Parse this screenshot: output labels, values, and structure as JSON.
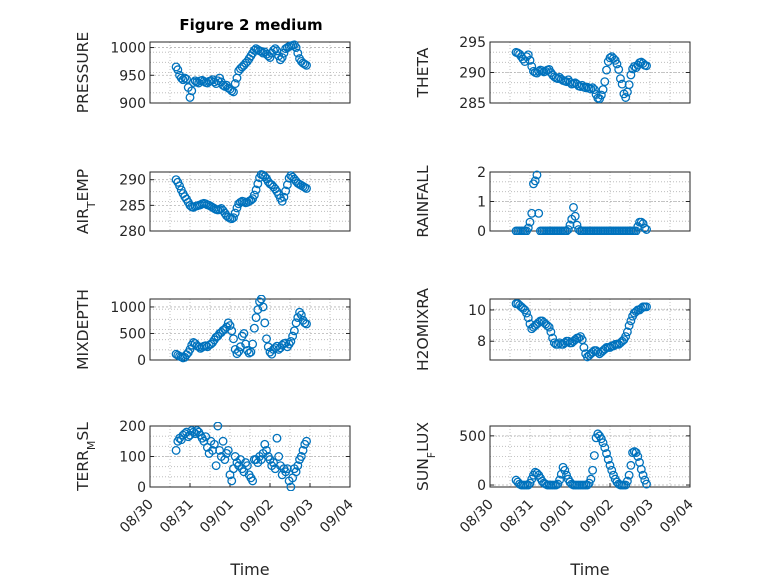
{
  "title": "Figure 2 medium",
  "colors": {
    "series": "#0072BD",
    "axis": "#262626",
    "grid": "#b3b3b3"
  },
  "chart_data": [
    {
      "type": "scatter",
      "title": "Figure 2 medium",
      "ylabel": "PRESSURE",
      "ylim": [
        900,
        1010
      ],
      "yticks": [
        "900",
        "950",
        "1000"
      ],
      "x": [
        0.0,
        0.04,
        0.08,
        0.12,
        0.16,
        0.2,
        0.24,
        0.28,
        0.32,
        0.36,
        0.4,
        0.44,
        0.48,
        0.52,
        0.56,
        0.6,
        0.64,
        0.68,
        0.72,
        0.76,
        0.8,
        0.84,
        0.88,
        0.92,
        0.96,
        1.0,
        1.04,
        1.08,
        1.12,
        1.16,
        1.2,
        1.24,
        1.28,
        1.32,
        1.36,
        1.4,
        1.44,
        1.48,
        1.52,
        1.56,
        1.6,
        1.64,
        1.68,
        1.72,
        1.76,
        1.8,
        1.84,
        1.88,
        1.92,
        1.96,
        2.0,
        2.04,
        2.08,
        2.12,
        2.16,
        2.2,
        2.24,
        2.28,
        2.32,
        2.36,
        2.4,
        2.44,
        2.48,
        2.52,
        2.56,
        2.6,
        2.64,
        2.68,
        2.72,
        2.76,
        2.8,
        2.84,
        2.88,
        2.92,
        2.96,
        3.0
      ],
      "y": [
        965,
        960,
        950,
        945,
        942,
        945,
        943,
        928,
        910,
        922,
        937,
        940,
        938,
        936,
        940,
        941,
        939,
        937,
        936,
        939,
        940,
        942,
        938,
        935,
        940,
        945,
        938,
        932,
        930,
        932,
        927,
        925,
        922,
        920,
        935,
        945,
        958,
        962,
        965,
        968,
        972,
        975,
        980,
        985,
        990,
        995,
        998,
        996,
        994,
        993,
        990,
        992,
        988,
        985,
        982,
        990,
        995,
        998,
        994,
        985,
        978,
        982,
        990,
        998,
        1000,
        1002,
        1003,
        1004,
        1005,
        1000,
        990,
        980,
        975,
        972,
        970,
        968
      ],
      "xlim": [
        -0.6,
        4.0
      ],
      "xticks": [],
      "xlabel": ""
    },
    {
      "type": "scatter",
      "ylabel": "THETA",
      "ylim": [
        285,
        295
      ],
      "yticks": [
        "285",
        "290",
        "295"
      ],
      "x": [
        0.0,
        0.04,
        0.08,
        0.12,
        0.16,
        0.2,
        0.24,
        0.28,
        0.32,
        0.36,
        0.4,
        0.44,
        0.48,
        0.52,
        0.56,
        0.6,
        0.64,
        0.68,
        0.72,
        0.76,
        0.8,
        0.84,
        0.88,
        0.92,
        0.96,
        1.0,
        1.04,
        1.08,
        1.12,
        1.16,
        1.2,
        1.24,
        1.28,
        1.32,
        1.36,
        1.4,
        1.44,
        1.48,
        1.52,
        1.56,
        1.6,
        1.64,
        1.68,
        1.72,
        1.76,
        1.8,
        1.84,
        1.88,
        1.92,
        1.96,
        2.0,
        2.04,
        2.08,
        2.12,
        2.16,
        2.2,
        2.24,
        2.28,
        2.32,
        2.36,
        2.4,
        2.44,
        2.48,
        2.52,
        2.56,
        2.6,
        2.64,
        2.68,
        2.72,
        2.76,
        2.8,
        2.84,
        2.88,
        2.92,
        2.96,
        3.0
      ],
      "y": [
        293.3,
        293.2,
        293,
        292.6,
        292.2,
        291.8,
        292.6,
        292.9,
        292,
        291,
        290.2,
        290,
        289.9,
        290.2,
        290.4,
        290.3,
        290.1,
        290.2,
        290.4,
        290.5,
        290,
        289.6,
        289.3,
        289.1,
        289,
        289.2,
        288.9,
        288.7,
        288.6,
        288.5,
        288.8,
        288.4,
        288.1,
        288.2,
        288.3,
        288.1,
        287.8,
        287.7,
        287.9,
        287.6,
        287.5,
        287.6,
        287.4,
        287.3,
        287.5,
        287.2,
        286.4,
        285.8,
        285.7,
        286.3,
        287.2,
        288.5,
        290.4,
        291.8,
        292.4,
        292.6,
        292.3,
        292,
        291.4,
        290.5,
        289,
        288.1,
        286.5,
        285.9,
        286.8,
        288,
        289.6,
        290.6,
        291,
        290.8,
        291.2,
        291.6,
        291.7,
        291.5,
        291.2,
        291.1
      ],
      "xlim": [
        -0.6,
        4.0
      ],
      "xticks": [],
      "xlabel": ""
    },
    {
      "type": "scatter",
      "ylabel_main": "AIR",
      "ylabel_sub": "T",
      "ylabel_rest": "EMP",
      "ylim": [
        280,
        291.5
      ],
      "yticks": [
        "280",
        "285",
        "290"
      ],
      "x": [
        0.0,
        0.04,
        0.08,
        0.12,
        0.16,
        0.2,
        0.24,
        0.28,
        0.32,
        0.36,
        0.4,
        0.44,
        0.48,
        0.52,
        0.56,
        0.6,
        0.64,
        0.68,
        0.72,
        0.76,
        0.8,
        0.84,
        0.88,
        0.92,
        0.96,
        1.0,
        1.04,
        1.08,
        1.12,
        1.16,
        1.2,
        1.24,
        1.28,
        1.32,
        1.36,
        1.4,
        1.44,
        1.48,
        1.52,
        1.56,
        1.6,
        1.64,
        1.68,
        1.72,
        1.76,
        1.8,
        1.84,
        1.88,
        1.92,
        1.96,
        2.0,
        2.04,
        2.08,
        2.12,
        2.16,
        2.2,
        2.24,
        2.28,
        2.32,
        2.36,
        2.4,
        2.44,
        2.48,
        2.52,
        2.56,
        2.6,
        2.64,
        2.68,
        2.72,
        2.76,
        2.8,
        2.84,
        2.88,
        2.92,
        2.96,
        3.0
      ],
      "y": [
        290,
        289.5,
        288.8,
        288,
        287.3,
        286.7,
        286.2,
        285.6,
        285,
        284.7,
        284.6,
        284.8,
        284.9,
        285,
        285.1,
        285.3,
        285.4,
        285.3,
        285.1,
        285,
        284.8,
        284.6,
        284.4,
        284.2,
        284.1,
        284.2,
        284.4,
        284,
        283.5,
        283,
        282.7,
        282.5,
        282.4,
        282.6,
        283.5,
        284.5,
        285.3,
        285.6,
        285.8,
        285.7,
        285.5,
        285.6,
        285.8,
        286,
        286.3,
        287,
        288,
        289.2,
        290.4,
        291,
        290.9,
        290.6,
        290.2,
        289.6,
        289.2,
        289,
        288.6,
        288.2,
        287.7,
        287.1,
        286.4,
        285.8,
        286.6,
        287.8,
        289,
        290.3,
        290.8,
        290.5,
        290.1,
        289.7,
        289.3,
        289.1,
        288.9,
        288.7,
        288.5,
        288.3
      ],
      "xlim": [
        -0.6,
        4.0
      ],
      "xticks": [],
      "xlabel": ""
    },
    {
      "type": "scatter",
      "ylabel": "RAINFALL",
      "ylim": [
        0,
        2
      ],
      "yticks": [
        "0",
        "1",
        "2"
      ],
      "x": [
        0.0,
        0.04,
        0.08,
        0.12,
        0.16,
        0.2,
        0.24,
        0.28,
        0.32,
        0.36,
        0.4,
        0.44,
        0.48,
        0.52,
        0.56,
        0.6,
        0.64,
        0.68,
        0.72,
        0.76,
        0.8,
        0.84,
        0.88,
        0.92,
        0.96,
        1.0,
        1.04,
        1.08,
        1.12,
        1.16,
        1.2,
        1.24,
        1.28,
        1.32,
        1.36,
        1.4,
        1.44,
        1.48,
        1.52,
        1.56,
        1.6,
        1.64,
        1.68,
        1.72,
        1.76,
        1.8,
        1.84,
        1.88,
        1.92,
        1.96,
        2.0,
        2.04,
        2.08,
        2.12,
        2.16,
        2.2,
        2.24,
        2.28,
        2.32,
        2.36,
        2.4,
        2.44,
        2.48,
        2.52,
        2.56,
        2.6,
        2.64,
        2.68,
        2.72,
        2.76,
        2.8,
        2.84,
        2.88,
        2.92,
        2.96,
        3.0
      ],
      "y": [
        0,
        0,
        0,
        0,
        0,
        0,
        0,
        0.1,
        0.3,
        0.6,
        1.6,
        1.7,
        1.9,
        0.6,
        0,
        0,
        0,
        0,
        0,
        0,
        0,
        0,
        0,
        0,
        0,
        0,
        0,
        0,
        0,
        0,
        0.05,
        0.2,
        0.4,
        0.8,
        0.5,
        0.2,
        0.05,
        0,
        0,
        0,
        0,
        0,
        0,
        0,
        0,
        0,
        0,
        0,
        0,
        0,
        0,
        0,
        0,
        0,
        0,
        0,
        0,
        0,
        0,
        0,
        0,
        0,
        0,
        0,
        0,
        0,
        0,
        0,
        0,
        0,
        0.15,
        0.3,
        0.3,
        0.25,
        0.1,
        0.05
      ],
      "xlim": [
        -0.6,
        4.0
      ],
      "xticks": [],
      "xlabel": ""
    },
    {
      "type": "scatter",
      "ylabel": "MIXDEPTH",
      "ylim": [
        0,
        1150
      ],
      "yticks": [
        "0",
        "500",
        "1000"
      ],
      "x": [
        0.0,
        0.04,
        0.08,
        0.12,
        0.16,
        0.2,
        0.24,
        0.28,
        0.32,
        0.36,
        0.4,
        0.44,
        0.48,
        0.52,
        0.56,
        0.6,
        0.64,
        0.68,
        0.72,
        0.76,
        0.8,
        0.84,
        0.88,
        0.92,
        0.96,
        1.0,
        1.04,
        1.08,
        1.12,
        1.16,
        1.2,
        1.24,
        1.28,
        1.32,
        1.36,
        1.4,
        1.44,
        1.48,
        1.52,
        1.56,
        1.6,
        1.64,
        1.68,
        1.72,
        1.76,
        1.8,
        1.84,
        1.88,
        1.92,
        1.96,
        2.0,
        2.04,
        2.08,
        2.12,
        2.16,
        2.2,
        2.24,
        2.28,
        2.32,
        2.36,
        2.4,
        2.44,
        2.48,
        2.52,
        2.56,
        2.6,
        2.64,
        2.68,
        2.72,
        2.76,
        2.8,
        2.84,
        2.88,
        2.92,
        2.96,
        3.0
      ],
      "y": [
        110,
        90,
        70,
        60,
        40,
        50,
        100,
        140,
        200,
        280,
        330,
        310,
        270,
        250,
        220,
        240,
        260,
        270,
        250,
        280,
        300,
        330,
        380,
        430,
        450,
        500,
        520,
        560,
        580,
        620,
        700,
        650,
        550,
        400,
        200,
        120,
        160,
        250,
        450,
        500,
        300,
        180,
        130,
        150,
        300,
        600,
        800,
        950,
        1100,
        1150,
        1000,
        700,
        400,
        250,
        150,
        110,
        200,
        230,
        260,
        200,
        230,
        280,
        310,
        320,
        250,
        300,
        350,
        450,
        550,
        700,
        800,
        900,
        850,
        750,
        700,
        680
      ],
      "xlim": [
        -0.6,
        4.0
      ],
      "xticks": [],
      "xlabel": ""
    },
    {
      "type": "scatter",
      "ylabel": "H2OMIXRA",
      "ylim": [
        6.8,
        10.7
      ],
      "yticks": [
        "8",
        "10"
      ],
      "x": [
        0.0,
        0.04,
        0.08,
        0.12,
        0.16,
        0.2,
        0.24,
        0.28,
        0.32,
        0.36,
        0.4,
        0.44,
        0.48,
        0.52,
        0.56,
        0.6,
        0.64,
        0.68,
        0.72,
        0.76,
        0.8,
        0.84,
        0.88,
        0.92,
        0.96,
        1.0,
        1.04,
        1.08,
        1.12,
        1.16,
        1.2,
        1.24,
        1.28,
        1.32,
        1.36,
        1.4,
        1.44,
        1.48,
        1.52,
        1.56,
        1.6,
        1.64,
        1.68,
        1.72,
        1.76,
        1.8,
        1.84,
        1.88,
        1.92,
        1.96,
        2.0,
        2.04,
        2.08,
        2.12,
        2.16,
        2.2,
        2.24,
        2.28,
        2.32,
        2.36,
        2.4,
        2.44,
        2.48,
        2.52,
        2.56,
        2.6,
        2.64,
        2.68,
        2.72,
        2.76,
        2.8,
        2.84,
        2.88,
        2.92,
        2.96,
        3.0
      ],
      "y": [
        10.4,
        10.4,
        10.3,
        10.2,
        10.1,
        10.0,
        9.8,
        9.5,
        9.1,
        8.8,
        8.9,
        9.0,
        9.1,
        9.2,
        9.3,
        9.3,
        9.2,
        9.1,
        9.0,
        8.9,
        8.6,
        8.2,
        7.9,
        7.8,
        7.8,
        7.9,
        7.8,
        7.8,
        7.9,
        8.0,
        8.0,
        7.9,
        7.9,
        8.0,
        8.1,
        8.2,
        8.2,
        8.3,
        8.1,
        7.6,
        7.2,
        7.0,
        7.1,
        7.2,
        7.3,
        7.4,
        7.4,
        7.3,
        7.2,
        7.3,
        7.4,
        7.5,
        7.6,
        7.6,
        7.6,
        7.7,
        7.7,
        7.8,
        7.8,
        7.8,
        7.9,
        8.0,
        8.1,
        8.3,
        8.6,
        9.0,
        9.3,
        9.6,
        9.8,
        9.9,
        10.0,
        10.0,
        10.1,
        10.2,
        10.2,
        10.2
      ],
      "xlim": [
        -0.6,
        4.0
      ],
      "xticks": [],
      "xlabel": ""
    },
    {
      "type": "scatter",
      "ylabel_main": "TERR",
      "ylabel_sub": "M",
      "ylabel_rest": "SL",
      "ylim": [
        0,
        200
      ],
      "yticks": [
        "0",
        "100",
        "200"
      ],
      "x": [
        0.0,
        0.04,
        0.08,
        0.12,
        0.16,
        0.2,
        0.24,
        0.28,
        0.32,
        0.36,
        0.4,
        0.44,
        0.48,
        0.52,
        0.56,
        0.6,
        0.64,
        0.68,
        0.72,
        0.76,
        0.8,
        0.84,
        0.88,
        0.92,
        0.96,
        1.0,
        1.04,
        1.08,
        1.12,
        1.16,
        1.2,
        1.24,
        1.28,
        1.32,
        1.36,
        1.4,
        1.44,
        1.48,
        1.52,
        1.56,
        1.6,
        1.64,
        1.68,
        1.72,
        1.76,
        1.8,
        1.84,
        1.88,
        1.92,
        1.96,
        2.0,
        2.04,
        2.08,
        2.12,
        2.16,
        2.2,
        2.24,
        2.28,
        2.32,
        2.36,
        2.4,
        2.44,
        2.48,
        2.52,
        2.56,
        2.6,
        2.64,
        2.68,
        2.72,
        2.76,
        2.8,
        2.84,
        2.88,
        2.92,
        2.96,
        3.0
      ],
      "y": [
        120,
        150,
        160,
        155,
        170,
        175,
        180,
        165,
        170,
        185,
        180,
        175,
        185,
        180,
        170,
        160,
        150,
        165,
        130,
        110,
        150,
        120,
        140,
        70,
        200,
        120,
        100,
        150,
        90,
        110,
        120,
        40,
        20,
        60,
        100,
        80,
        70,
        90,
        60,
        50,
        80,
        70,
        40,
        30,
        20,
        90,
        90,
        80,
        100,
        90,
        110,
        140,
        120,
        100,
        90,
        70,
        80,
        60,
        160,
        100,
        70,
        40,
        60,
        50,
        60,
        20,
        0,
        30,
        60,
        50,
        70,
        90,
        100,
        120,
        140,
        150
      ],
      "xlim": [
        -0.6,
        4.0
      ],
      "xticks": [
        "08/30",
        "08/31",
        "09/01",
        "09/02",
        "09/03",
        "09/04"
      ],
      "xtick_values": [
        -0.5,
        0.5,
        1.5,
        2.5,
        3.5,
        4.5
      ],
      "xlabel": "Time"
    },
    {
      "type": "scatter",
      "ylabel_main": "SUN",
      "ylabel_sub": "F",
      "ylabel_rest": "LUX",
      "ylim": [
        -20,
        600
      ],
      "yticks": [
        "0",
        "500"
      ],
      "x": [
        0.0,
        0.04,
        0.08,
        0.12,
        0.16,
        0.2,
        0.24,
        0.28,
        0.32,
        0.36,
        0.4,
        0.44,
        0.48,
        0.52,
        0.56,
        0.6,
        0.64,
        0.68,
        0.72,
        0.76,
        0.8,
        0.84,
        0.88,
        0.92,
        0.96,
        1.0,
        1.04,
        1.08,
        1.12,
        1.16,
        1.2,
        1.24,
        1.28,
        1.32,
        1.36,
        1.4,
        1.44,
        1.48,
        1.52,
        1.56,
        1.6,
        1.64,
        1.68,
        1.72,
        1.76,
        1.8,
        1.84,
        1.88,
        1.92,
        1.96,
        2.0,
        2.04,
        2.08,
        2.12,
        2.16,
        2.2,
        2.24,
        2.28,
        2.32,
        2.36,
        2.4,
        2.44,
        2.48,
        2.52,
        2.56,
        2.6,
        2.64,
        2.68,
        2.72,
        2.76,
        2.8,
        2.84,
        2.88,
        2.92,
        2.96,
        3.0
      ],
      "y": [
        50,
        30,
        10,
        0,
        0,
        0,
        0,
        0,
        20,
        60,
        100,
        130,
        120,
        100,
        70,
        40,
        20,
        10,
        0,
        0,
        0,
        0,
        0,
        0,
        10,
        50,
        110,
        180,
        150,
        100,
        60,
        30,
        10,
        0,
        0,
        0,
        0,
        0,
        0,
        0,
        0,
        0,
        20,
        60,
        150,
        300,
        480,
        520,
        500,
        470,
        430,
        380,
        320,
        260,
        200,
        150,
        100,
        60,
        30,
        10,
        0,
        0,
        0,
        0,
        40,
        100,
        200,
        330,
        340,
        330,
        290,
        230,
        160,
        100,
        50,
        10
      ],
      "xlim": [
        -0.6,
        4.0
      ],
      "xticks": [
        "08/30",
        "08/31",
        "09/01",
        "09/02",
        "09/03",
        "09/04"
      ],
      "xtick_values": [
        -0.5,
        0.5,
        1.5,
        2.5,
        3.5,
        4.5
      ],
      "xlabel": "Time"
    }
  ]
}
